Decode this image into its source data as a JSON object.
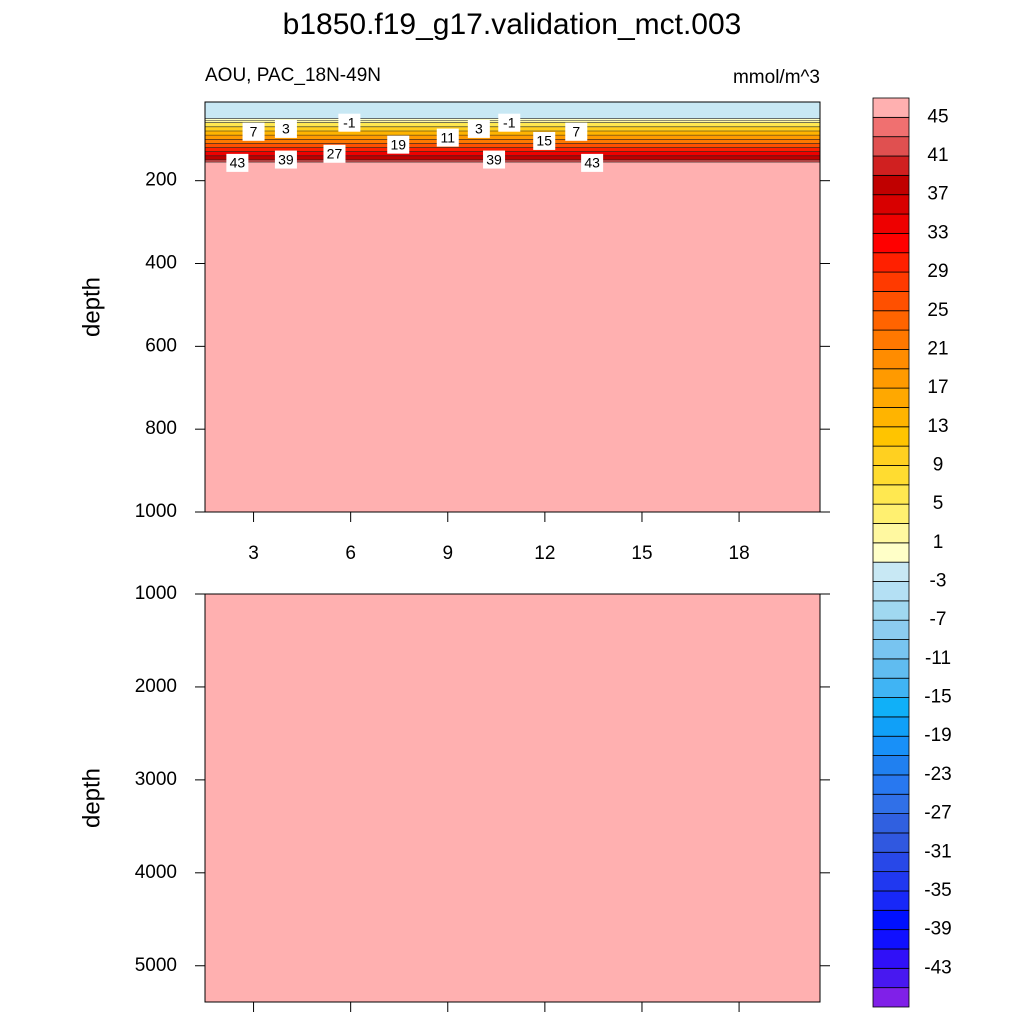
{
  "title": "b1850.f19_g17.validation_mct.003",
  "chart_data": [
    {
      "type": "contour",
      "subtitle_left": "AOU, PAC_18N-49N",
      "subtitle_right": "mmol/m^3",
      "ylabel": "depth",
      "xlim": [
        1.5,
        20.5
      ],
      "xticks": [
        3,
        6,
        9,
        12,
        15,
        18
      ],
      "show_xtick_labels": true,
      "ylim": [
        10,
        1000
      ],
      "y_inverted": true,
      "yticks": [
        200,
        400,
        600,
        800,
        1000
      ],
      "profile": {
        "depth": [
          10,
          50,
          55,
          60,
          70,
          80,
          90,
          100,
          110,
          120,
          130,
          140,
          150,
          155,
          1000
        ],
        "values": [
          -2,
          0,
          2,
          6,
          10,
          14,
          18,
          22,
          26,
          30,
          34,
          38,
          42,
          46
        ]
      },
      "contour_labels": [
        {
          "x": 3.0,
          "depth": 82,
          "value": 7
        },
        {
          "x": 4.0,
          "depth": 75,
          "value": 3
        },
        {
          "x": 5.96,
          "depth": 60,
          "value": -1
        },
        {
          "x": 7.47,
          "depth": 113,
          "value": 19
        },
        {
          "x": 9.0,
          "depth": 96,
          "value": 11
        },
        {
          "x": 9.96,
          "depth": 75,
          "value": 3
        },
        {
          "x": 10.9,
          "depth": 60,
          "value": -1
        },
        {
          "x": 11.98,
          "depth": 104,
          "value": 15
        },
        {
          "x": 12.97,
          "depth": 82,
          "value": 7
        },
        {
          "x": 2.5,
          "depth": 157,
          "value": 43
        },
        {
          "x": 4.0,
          "depth": 149,
          "value": 39
        },
        {
          "x": 5.5,
          "depth": 135,
          "value": 27
        },
        {
          "x": 10.43,
          "depth": 149,
          "value": 39
        },
        {
          "x": 13.46,
          "depth": 157,
          "value": 43
        }
      ]
    },
    {
      "type": "contour",
      "ylabel": "depth",
      "xlim": [
        1.5,
        20.5
      ],
      "xticks": [
        3,
        6,
        9,
        12,
        15,
        18
      ],
      "show_xtick_labels": false,
      "ylim": [
        1000,
        5390
      ],
      "y_inverted": true,
      "yticks": [
        1000,
        2000,
        3000,
        4000,
        5000
      ],
      "profile": {
        "depth": [
          1000,
          5390
        ],
        "values": [
          46
        ]
      },
      "contour_labels": []
    }
  ],
  "colorbar": {
    "levels": [
      -45,
      -43,
      -41,
      -39,
      -37,
      -35,
      -33,
      -31,
      -29,
      -27,
      -25,
      -23,
      -21,
      -19,
      -17,
      -15,
      -13,
      -11,
      -9,
      -7,
      -5,
      -3,
      -1,
      1,
      3,
      5,
      7,
      9,
      11,
      13,
      15,
      17,
      19,
      21,
      23,
      25,
      27,
      29,
      31,
      33,
      35,
      37,
      39,
      41,
      43,
      45
    ],
    "labels": [
      -43,
      -39,
      -35,
      -31,
      -27,
      -23,
      -19,
      -15,
      -11,
      -7,
      -3,
      1,
      5,
      9,
      13,
      17,
      21,
      25,
      29,
      33,
      37,
      41,
      45
    ],
    "colors": [
      "#8020e8",
      "#4818f0",
      "#3010f8",
      "#1010ff",
      "#0010ff",
      "#1828f8",
      "#2038f0",
      "#2848e8",
      "#3058e0",
      "#3060e0",
      "#3070e8",
      "#2878f0",
      "#2080f0",
      "#1890f8",
      "#10a0f8",
      "#10b0f8",
      "#40b4f4",
      "#60bcf0",
      "#78c4f0",
      "#8cccf0",
      "#a0d8f0",
      "#b4e0f4",
      "#c8e8f4",
      "#ffffc8",
      "#fff8a0",
      "#fff070",
      "#ffe850",
      "#ffdc30",
      "#ffd020",
      "#ffc400",
      "#ffb400",
      "#ffa800",
      "#ff9a00",
      "#ff8c00",
      "#ff7800",
      "#ff6400",
      "#ff5000",
      "#ff3a00",
      "#ff2000",
      "#ff0000",
      "#ee0000",
      "#d80000",
      "#c00000",
      "#d02020",
      "#e05050",
      "#f07070",
      "#ffb0b0"
    ]
  }
}
